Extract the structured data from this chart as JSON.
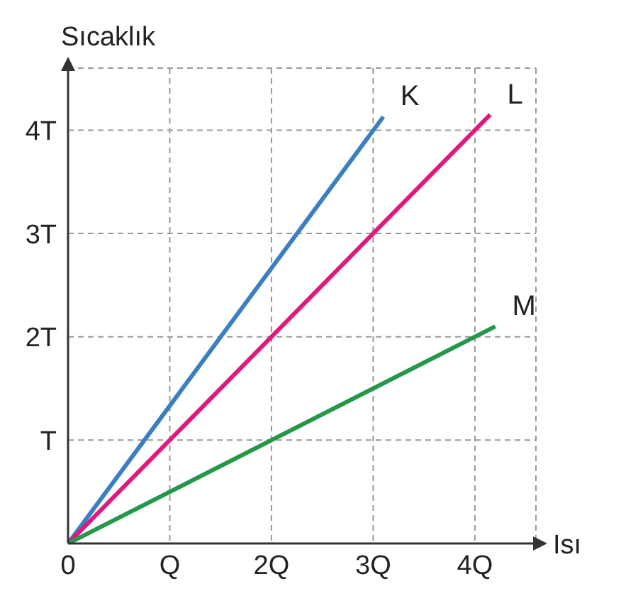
{
  "chart_data": {
    "type": "line",
    "xlabel": "Isı",
    "ylabel": "Sıcaklık",
    "series": [
      {
        "name": "K",
        "color": "#3a7fc1",
        "x": [
          0,
          3.1
        ],
        "values": [
          0,
          4.13
        ]
      },
      {
        "name": "L",
        "color": "#e0197d",
        "x": [
          0,
          4.15
        ],
        "values": [
          0,
          4.15
        ]
      },
      {
        "name": "M",
        "color": "#23984a",
        "x": [
          0,
          4.2
        ],
        "values": [
          0,
          2.1
        ]
      }
    ],
    "xlim": [
      0,
      4.6
    ],
    "ylim": [
      0,
      4.6
    ],
    "xticks": [
      {
        "value": 0,
        "label": "0"
      },
      {
        "value": 1,
        "label": "Q"
      },
      {
        "value": 2,
        "label": "2Q"
      },
      {
        "value": 3,
        "label": "3Q"
      },
      {
        "value": 4,
        "label": "4Q"
      }
    ],
    "yticks": [
      {
        "value": 1,
        "label": "T"
      },
      {
        "value": 2,
        "label": "2T"
      },
      {
        "value": 3,
        "label": "3T"
      },
      {
        "value": 4,
        "label": "4T"
      }
    ],
    "grid": true,
    "legend": false,
    "marker": "none",
    "line_style": "solid"
  }
}
